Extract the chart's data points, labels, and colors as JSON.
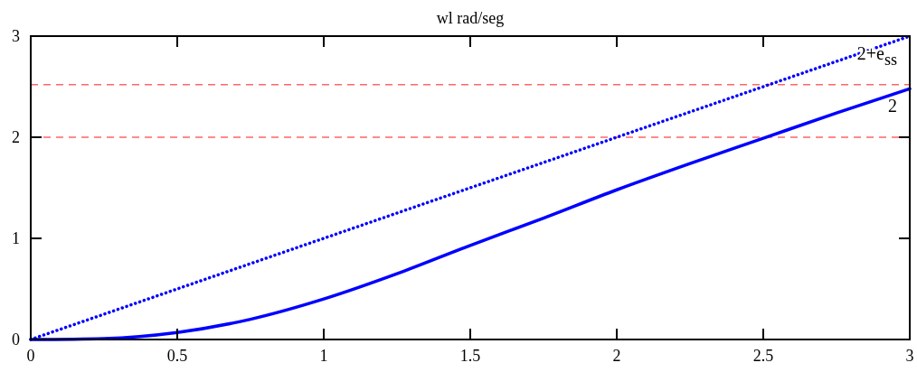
{
  "chart_data": {
    "type": "line",
    "title": "wl rad/seg",
    "series": [
      {
        "name": "2+e$_{ss}$",
        "color": "#0000ff",
        "line_style": "dotted",
        "x": [
          0,
          3
        ],
        "values": [
          0,
          3
        ]
      },
      {
        "name": "2",
        "color": "#0000ff",
        "line_style": "solid",
        "x": [
          0,
          0.25,
          0.5,
          0.75,
          1,
          1.25,
          1.5,
          1.75,
          2,
          2.25,
          2.5,
          2.75,
          3
        ],
        "values": [
          0,
          0.01,
          0.07,
          0.2,
          0.4,
          0.65,
          0.93,
          1.2,
          1.48,
          1.74,
          1.99,
          2.24,
          2.48
        ]
      }
    ],
    "xlim": [
      0,
      3
    ],
    "xticks": [
      0,
      0.5,
      1,
      1.5,
      2,
      2.5,
      3
    ],
    "ylim": [
      0,
      3
    ],
    "yticks": [
      0,
      1,
      2,
      3
    ],
    "ref_lines": [
      {
        "axis": "y",
        "value": 2,
        "color": "#ff6666",
        "line_style": "dashed"
      },
      {
        "axis": "y",
        "value": 2.52,
        "color": "#ff6666",
        "line_style": "dashed"
      }
    ],
    "grid": false,
    "marker": "none"
  }
}
